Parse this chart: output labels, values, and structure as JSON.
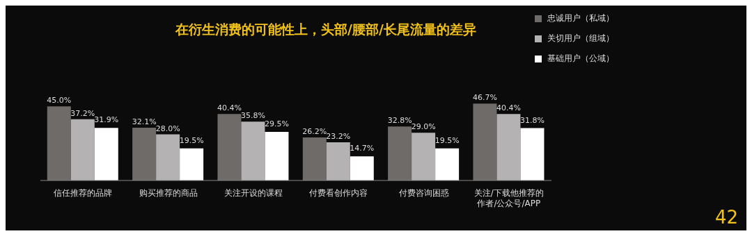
{
  "chart_data": {
    "type": "bar",
    "title": "在衍生消费的可能性上，头部/腰部/长尾流量的差异",
    "categories": [
      "信任推荐的品牌",
      "购买推荐的商品",
      "关注开设的课程",
      "付费看创作内容",
      "付费咨询困惑",
      "关注/下载他推荐的作者/公众号/APP"
    ],
    "series": [
      {
        "name": "忠诚用户（私域）",
        "color": "#6f6b69",
        "values": [
          45.0,
          32.1,
          40.4,
          26.2,
          32.8,
          46.7
        ],
        "value_labels": [
          "45.0%",
          "32.1%",
          "40.4%",
          "26.2%",
          "32.8%",
          "46.7%"
        ]
      },
      {
        "name": "关切用户（组域）",
        "color": "#b4b2b2",
        "values": [
          37.2,
          28.0,
          35.8,
          23.2,
          29.0,
          40.4
        ],
        "value_labels": [
          "37.2%",
          "28.0%",
          "35.8%",
          "23.2%",
          "29.0%",
          "40.4%"
        ]
      },
      {
        "name": "基础用户（公域）",
        "color": "#ffffff",
        "values": [
          31.9,
          19.5,
          29.5,
          14.7,
          19.5,
          31.8
        ],
        "value_labels": [
          "31.9%",
          "19.5%",
          "29.5%",
          "14.7%",
          "19.5%",
          "31.8%"
        ]
      }
    ],
    "legend": "top right",
    "annotations": [
      "42"
    ]
  }
}
